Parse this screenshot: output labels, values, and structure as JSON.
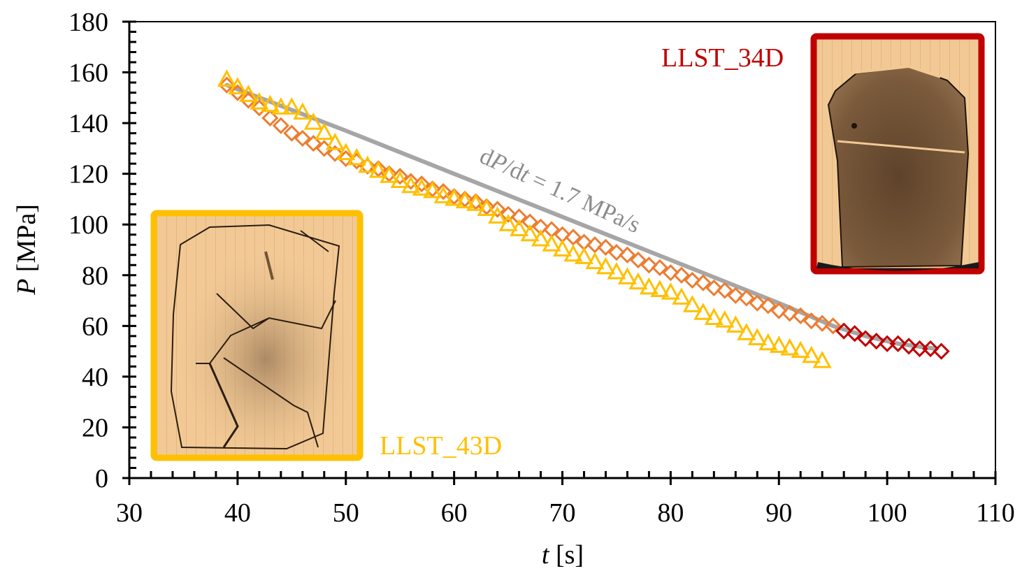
{
  "chart_data": {
    "type": "scatter",
    "title": "",
    "xlabel": {
      "var": "t",
      "unit": " [s]"
    },
    "ylabel": {
      "var": "P",
      "unit": " [MPa]"
    },
    "xlim": [
      30,
      110
    ],
    "ylim": [
      0,
      180
    ],
    "xticks": [
      30,
      40,
      50,
      60,
      70,
      80,
      90,
      100,
      110
    ],
    "yticks": [
      0,
      20,
      40,
      60,
      80,
      100,
      120,
      140,
      160,
      180
    ],
    "xticks_labels": [
      "30",
      "40",
      "50",
      "60",
      "70",
      "80",
      "90",
      "100",
      "110"
    ],
    "yticks_labels": [
      "0",
      "20",
      "40",
      "60",
      "80",
      "100",
      "120",
      "140",
      "160",
      "180"
    ],
    "grid": false,
    "series": [
      {
        "name": "LLST_43D",
        "marker": "triangle",
        "color": "#FFC000",
        "x": [
          39,
          40,
          41,
          42,
          43,
          44,
          45,
          46,
          47,
          48,
          49,
          50,
          51,
          52,
          53,
          54,
          55,
          56,
          57,
          58,
          59,
          60,
          61,
          62,
          63,
          64,
          65,
          66,
          67,
          68,
          69,
          70,
          71,
          72,
          73,
          74,
          75,
          76,
          77,
          78,
          79,
          80,
          81,
          82,
          83,
          84,
          85,
          86,
          87,
          88,
          89,
          90,
          91,
          92,
          93,
          94
        ],
        "y": [
          157,
          154,
          151,
          148,
          147,
          146,
          146,
          144,
          140,
          136,
          132,
          128,
          126,
          123,
          121,
          119,
          117,
          115,
          114,
          113,
          111,
          110,
          109,
          108,
          106,
          103,
          100,
          98,
          96,
          94,
          92,
          90,
          88,
          87,
          85,
          83,
          81,
          79,
          77,
          75,
          74,
          73,
          71,
          68,
          65,
          63,
          62,
          60,
          57,
          55,
          53,
          52,
          51,
          50,
          48,
          46
        ]
      },
      {
        "name": "LLST_34D",
        "marker": "diamond",
        "color": "#ED7D31",
        "color_late": "#C00000",
        "color_change_after": 95,
        "x": [
          39,
          40,
          41,
          42,
          43,
          44,
          45,
          46,
          47,
          48,
          49,
          50,
          51,
          52,
          53,
          54,
          55,
          56,
          57,
          58,
          59,
          60,
          61,
          62,
          63,
          64,
          65,
          66,
          67,
          68,
          69,
          70,
          71,
          72,
          73,
          74,
          75,
          76,
          77,
          78,
          79,
          80,
          81,
          82,
          83,
          84,
          85,
          86,
          87,
          88,
          89,
          90,
          91,
          92,
          93,
          94,
          95,
          96,
          97,
          98,
          99,
          100,
          101,
          102,
          103,
          104,
          105
        ],
        "y": [
          155,
          152,
          149,
          146,
          142,
          139,
          136,
          134,
          132,
          130,
          128,
          126,
          125,
          123,
          122,
          120,
          119,
          117,
          116,
          114,
          113,
          111,
          110,
          109,
          107,
          106,
          104,
          103,
          101,
          99,
          98,
          96,
          95,
          93,
          92,
          91,
          89,
          88,
          86,
          84,
          83,
          81,
          80,
          78,
          77,
          75,
          74,
          72,
          71,
          69,
          68,
          66,
          65,
          64,
          62,
          61,
          60,
          58,
          57,
          55,
          54,
          53,
          53,
          52,
          51,
          51,
          50
        ]
      }
    ],
    "trend_line": {
      "color": "#A6A6A6",
      "x": [
        39,
        50,
        60,
        70,
        80,
        90,
        95,
        98,
        101,
        104.5
      ],
      "y": [
        155,
        137,
        120,
        103,
        86,
        69,
        60,
        56,
        53,
        51
      ],
      "annotation": {
        "prefix": "d",
        "var1": "P",
        "mid": "/d",
        "var2": "t",
        "suffix": " = 1.7 MPa/s"
      }
    },
    "insets": [
      {
        "label": "LLST_34D",
        "frame_color": "#C00000"
      },
      {
        "label": "LLST_43D",
        "frame_color": "#FFC000"
      }
    ]
  }
}
